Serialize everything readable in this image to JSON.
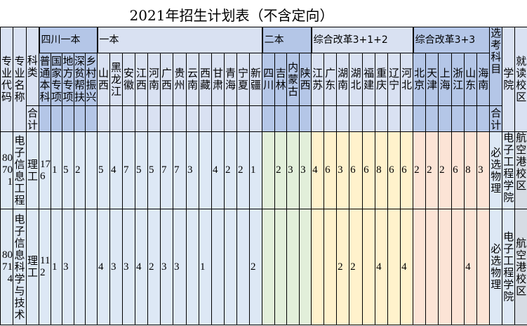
{
  "title": "2021年招生计划表（不含定向）",
  "colors": {
    "header_light": "#d9e1f2",
    "header_dark": "#b4c6e7",
    "cell_blue": "#dde8f5",
    "cell_green": "#e2efda",
    "cell_yellow": "#fff2cc",
    "cell_peach": "#fce4d6",
    "cell_gray": "#d6dce4"
  },
  "header": {
    "major_code": "专业代码",
    "major_name": "专业名称",
    "category": "科类",
    "total": "合计",
    "subject": "选考科目",
    "subject_total": "合计",
    "college": "学院",
    "campus": "就读校区",
    "groups": [
      {
        "label": "四川一本",
        "columns": [
          "普通本科",
          "国家专项",
          "地方专项",
          "深贫帮扶",
          "乡村振兴"
        ]
      },
      {
        "label": "一本",
        "columns": [
          "山西",
          "黑龙江",
          "安徽",
          "江西",
          "河南",
          "广西",
          "贵州",
          "云南",
          "西藏",
          "甘肃",
          "青海",
          "宁夏",
          "新疆"
        ]
      },
      {
        "label": "二本",
        "columns": [
          "四川",
          "吉林",
          "内蒙古",
          "陕西"
        ]
      },
      {
        "label": "综合改革3+1+2",
        "columns": [
          "江苏",
          "广东",
          "湖南",
          "湖北",
          "福建",
          "重庆",
          "辽宁",
          "河北"
        ]
      },
      {
        "label": "综合改革3+3",
        "columns": [
          "北京",
          "天津",
          "上海",
          "浙江",
          "山东",
          "海南"
        ]
      }
    ]
  },
  "rows": [
    {
      "code": "80701",
      "name": "电子信息工程",
      "category": "理工",
      "cells": [
        "176",
        "1",
        "5",
        "2",
        "",
        "5",
        "4",
        "7",
        "5",
        "5",
        "7",
        "7",
        "3",
        "",
        "4",
        "2",
        "2",
        "1",
        "",
        "2",
        "3",
        "3",
        "4",
        "6",
        "3",
        "6",
        "6",
        "8",
        "6",
        "6",
        "2",
        "2",
        "2",
        "6",
        "8",
        "3"
      ],
      "subject": "必选物理",
      "college": "电子工程学院",
      "campus": "航空港校区"
    },
    {
      "code": "80714",
      "name": "电子信息科学与技术",
      "category": "理工",
      "cells": [
        "112",
        "1",
        "3",
        "",
        "",
        "4",
        "3",
        "3",
        "4",
        "2",
        "3",
        "3",
        "",
        "1",
        "",
        "",
        "",
        "2",
        "",
        "",
        "",
        "",
        "",
        "",
        "2",
        "2",
        "",
        "4",
        "",
        "4",
        "",
        "",
        "",
        "",
        "4",
        ""
      ],
      "subject": "必选物理",
      "college": "电子工程学院",
      "campus": "航空港校区"
    }
  ]
}
